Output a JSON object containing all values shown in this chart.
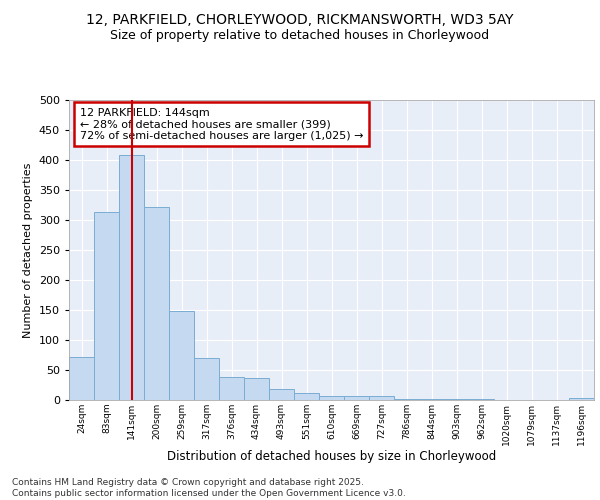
{
  "title1": "12, PARKFIELD, CHORLEYWOOD, RICKMANSWORTH, WD3 5AY",
  "title2": "Size of property relative to detached houses in Chorleywood",
  "xlabel": "Distribution of detached houses by size in Chorleywood",
  "ylabel": "Number of detached properties",
  "categories": [
    "24sqm",
    "83sqm",
    "141sqm",
    "200sqm",
    "259sqm",
    "317sqm",
    "376sqm",
    "434sqm",
    "493sqm",
    "551sqm",
    "610sqm",
    "669sqm",
    "727sqm",
    "786sqm",
    "844sqm",
    "903sqm",
    "962sqm",
    "1020sqm",
    "1079sqm",
    "1137sqm",
    "1196sqm"
  ],
  "values": [
    72,
    313,
    408,
    322,
    148,
    70,
    38,
    37,
    18,
    12,
    7,
    6,
    6,
    2,
    1,
    1,
    1,
    0,
    0,
    0,
    4
  ],
  "bar_color": "#c5d9f0",
  "bar_edge_color": "#7aadd4",
  "highlight_bar_index": 2,
  "highlight_line_color": "#cc0000",
  "annotation_text": "12 PARKFIELD: 144sqm\n← 28% of detached houses are smaller (399)\n72% of semi-detached houses are larger (1,025) →",
  "annotation_box_edge": "#cc0000",
  "ylim": [
    0,
    500
  ],
  "yticks": [
    0,
    50,
    100,
    150,
    200,
    250,
    300,
    350,
    400,
    450,
    500
  ],
  "footer": "Contains HM Land Registry data © Crown copyright and database right 2025.\nContains public sector information licensed under the Open Government Licence v3.0.",
  "bg_color": "#ffffff",
  "plot_bg_color": "#e8eef8",
  "grid_color": "#ffffff"
}
